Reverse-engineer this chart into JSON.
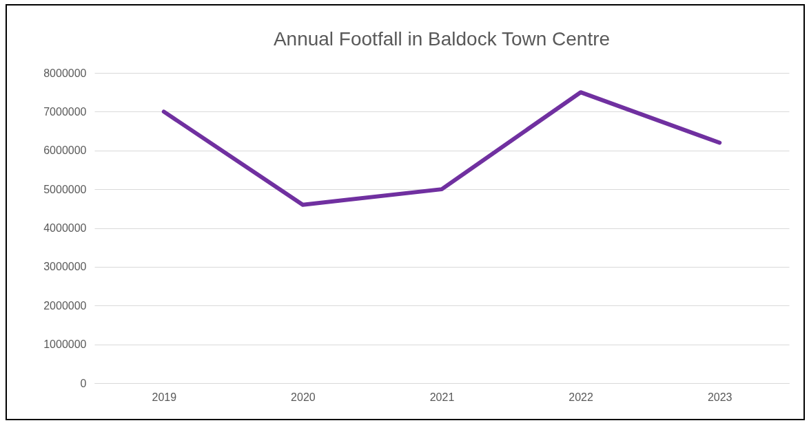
{
  "chart_data": {
    "type": "line",
    "title": "Annual Footfall in Baldock Town Centre",
    "categories": [
      "2019",
      "2020",
      "2021",
      "2022",
      "2023"
    ],
    "series": [
      {
        "color": "#7030a0",
        "values": [
          7000000,
          4600000,
          5000000,
          7500000,
          6200000
        ]
      }
    ],
    "ylim": [
      0,
      8000000
    ],
    "yticks": [
      0,
      1000000,
      2000000,
      3000000,
      4000000,
      5000000,
      6000000,
      7000000,
      8000000
    ],
    "grid": "y",
    "marker": "none",
    "line_style": "solid"
  }
}
